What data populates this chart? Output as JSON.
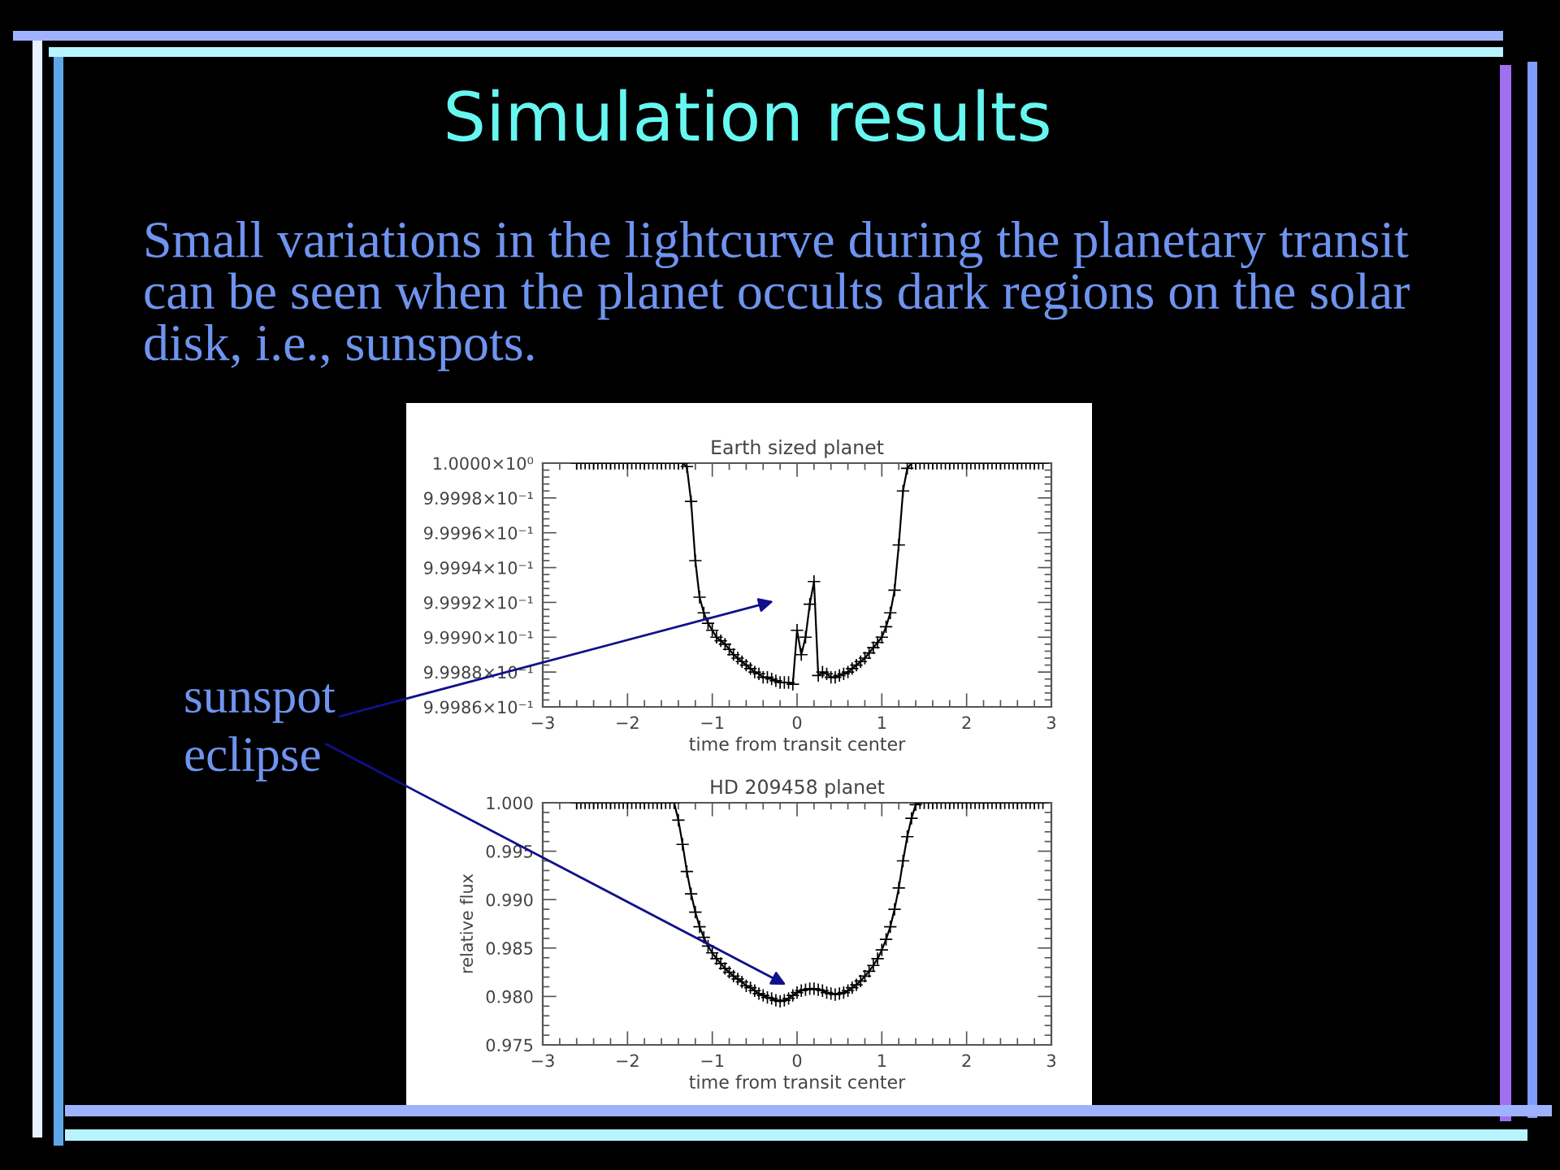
{
  "chart_data": [
    {
      "type": "line",
      "title": "Earth sized planet",
      "xlabel": "time from transit center",
      "color": "#000000",
      "marker": "cross",
      "line_style": "solid",
      "xlim": [
        -3,
        3
      ],
      "ylim": [
        0.99986,
        1.0
      ],
      "xticks": [
        {
          "value": -3,
          "label": "−3"
        },
        {
          "value": -2,
          "label": "−2"
        },
        {
          "value": -1,
          "label": "−1"
        },
        0,
        1,
        2,
        3
      ],
      "yticks": [
        {
          "value": 0.99986,
          "label": "9.9986×10⁻¹"
        },
        {
          "value": 0.99988,
          "label": "9.9988×10⁻¹"
        },
        {
          "value": 0.9999,
          "label": "9.9990×10⁻¹"
        },
        {
          "value": 0.99992,
          "label": "9.9992×10⁻¹"
        },
        {
          "value": 0.99994,
          "label": "9.9994×10⁻¹"
        },
        {
          "value": 0.99996,
          "label": "9.9996×10⁻¹"
        },
        {
          "value": 0.99998,
          "label": "9.9998×10⁻¹"
        },
        {
          "value": 1.0,
          "label": "1.0000×10⁰"
        }
      ],
      "x": [
        -2.6,
        -2.55,
        -2.5,
        -2.45,
        -2.4,
        -2.35,
        -2.3,
        -2.25,
        -2.2,
        -2.15,
        -2.1,
        -2.05,
        -2.0,
        -1.95,
        -1.9,
        -1.85,
        -1.8,
        -1.75,
        -1.7,
        -1.65,
        -1.6,
        -1.55,
        -1.5,
        -1.45,
        -1.4,
        -1.35,
        -1.3,
        -1.25,
        -1.2,
        -1.15,
        -1.1,
        -1.05,
        -1.0,
        -0.95,
        -0.9,
        -0.85,
        -0.8,
        -0.75,
        -0.7,
        -0.65,
        -0.6,
        -0.55,
        -0.5,
        -0.45,
        -0.4,
        -0.35,
        -0.3,
        -0.25,
        -0.2,
        -0.15,
        -0.1,
        -0.05,
        0,
        0.05,
        0.1,
        0.15,
        0.2,
        0.25,
        0.3,
        0.35,
        0.4,
        0.45,
        0.5,
        0.55,
        0.6,
        0.65,
        0.7,
        0.75,
        0.8,
        0.85,
        0.9,
        0.95,
        1.0,
        1.05,
        1.1,
        1.15,
        1.2,
        1.25,
        1.3,
        1.35,
        1.4,
        1.45,
        1.5,
        1.55,
        1.6,
        1.65,
        1.7,
        1.75,
        1.8,
        1.85,
        1.9,
        1.95,
        2.0,
        2.05,
        2.1,
        2.15,
        2.2,
        2.25,
        2.3,
        2.35,
        2.4,
        2.45,
        2.5,
        2.55,
        2.6,
        2.65,
        2.7,
        2.75,
        2.8,
        2.85,
        2.9
      ],
      "values": [
        1.0,
        1.0,
        1.0,
        1.0,
        1.0,
        1.0,
        1.0,
        1.0,
        1.0,
        1.0,
        1.0,
        1.0,
        1.0,
        1.0,
        1.0,
        1.0,
        1.0,
        1.0,
        1.0,
        1.0,
        1.0,
        1.0,
        1.0,
        1.0,
        1.0,
        1.0,
        0.999998,
        0.999978,
        0.999944,
        0.999923,
        0.999914,
        0.999908,
        0.999904,
        0.9999,
        0.999898,
        0.999896,
        0.999893,
        0.99989,
        0.999888,
        0.999886,
        0.999884,
        0.999882,
        0.99988,
        0.999879,
        0.999877,
        0.999877,
        0.999876,
        0.999875,
        0.999874,
        0.999874,
        0.999874,
        0.999873,
        0.999904,
        0.99989,
        0.9999,
        0.999919,
        0.999932,
        0.999878,
        0.99988,
        0.999879,
        0.999877,
        0.999877,
        0.999878,
        0.999879,
        0.99988,
        0.999882,
        0.999884,
        0.999886,
        0.999888,
        0.999891,
        0.999894,
        0.999897,
        0.9999,
        0.999906,
        0.999914,
        0.999927,
        0.999953,
        0.999984,
        0.999997,
        1.0,
        1.0,
        1.0,
        1.0,
        1.0,
        1.0,
        1.0,
        1.0,
        1.0,
        1.0,
        1.0,
        1.0,
        1.0,
        1.0,
        1.0,
        1.0,
        1.0,
        1.0,
        1.0,
        1.0,
        1.0,
        1.0,
        1.0,
        1.0,
        1.0,
        1.0,
        1.0,
        1.0,
        1.0,
        1.0,
        1.0,
        1.0
      ],
      "annotations": [
        "Simulation results",
        "Small variations in the lightcurve during the planetary transit can be seen when the planet occults dark regions on the solar disk, i.e., sunspots.",
        "sunspot"
      ]
    },
    {
      "type": "line",
      "title": "HD 209458 planet",
      "xlabel": "time from transit center",
      "ylabel": "relative flux",
      "color": "#000000",
      "marker": "cross",
      "line_style": "solid",
      "xlim": [
        -3,
        3
      ],
      "ylim": [
        0.975,
        1.0
      ],
      "xticks": [
        {
          "value": -3,
          "label": "−3"
        },
        {
          "value": -2,
          "label": "−2"
        },
        {
          "value": -1,
          "label": "−1"
        },
        0,
        1,
        2,
        3
      ],
      "yticks": [
        0.975,
        {
          "value": 0.98,
          "label": "0.980"
        },
        0.985,
        {
          "value": 0.99,
          "label": "0.990"
        },
        0.995,
        {
          "value": 1.0,
          "label": "1.000"
        }
      ],
      "x": [
        -2.6,
        -2.55,
        -2.5,
        -2.45,
        -2.4,
        -2.35,
        -2.3,
        -2.25,
        -2.2,
        -2.15,
        -2.1,
        -2.05,
        -2.0,
        -1.95,
        -1.9,
        -1.85,
        -1.8,
        -1.75,
        -1.7,
        -1.65,
        -1.6,
        -1.55,
        -1.5,
        -1.45,
        -1.4,
        -1.35,
        -1.3,
        -1.25,
        -1.2,
        -1.15,
        -1.1,
        -1.05,
        -1.0,
        -0.95,
        -0.9,
        -0.85,
        -0.8,
        -0.75,
        -0.7,
        -0.65,
        -0.6,
        -0.55,
        -0.5,
        -0.45,
        -0.4,
        -0.35,
        -0.3,
        -0.25,
        -0.2,
        -0.15,
        -0.1,
        -0.05,
        0,
        0.05,
        0.1,
        0.15,
        0.2,
        0.25,
        0.3,
        0.35,
        0.4,
        0.45,
        0.5,
        0.55,
        0.6,
        0.65,
        0.7,
        0.75,
        0.8,
        0.85,
        0.9,
        0.95,
        1.0,
        1.05,
        1.1,
        1.15,
        1.2,
        1.25,
        1.3,
        1.35,
        1.4,
        1.45,
        1.5,
        1.55,
        1.6,
        1.65,
        1.7,
        1.75,
        1.8,
        1.85,
        1.9,
        1.95,
        2.0,
        2.05,
        2.1,
        2.15,
        2.2,
        2.25,
        2.3,
        2.35,
        2.4,
        2.45,
        2.5,
        2.55,
        2.6,
        2.65,
        2.7,
        2.75,
        2.8,
        2.85,
        2.9
      ],
      "values": [
        1.0,
        1.0,
        1.0,
        1.0,
        1.0,
        1.0,
        1.0,
        1.0,
        1.0,
        1.0,
        1.0,
        1.0,
        1.0,
        1.0,
        1.0,
        1.0,
        1.0,
        1.0,
        1.0,
        1.0,
        1.0,
        1.0,
        1.0,
        1.0,
        0.9982,
        0.9957,
        0.9929,
        0.9906,
        0.9887,
        0.9872,
        0.9861,
        0.9852,
        0.9845,
        0.9839,
        0.9834,
        0.9829,
        0.9825,
        0.9821,
        0.9818,
        0.9815,
        0.9811,
        0.9809,
        0.9806,
        0.9803,
        0.9801,
        0.9799,
        0.9798,
        0.9796,
        0.9795,
        0.9796,
        0.9798,
        0.9801,
        0.9804,
        0.9806,
        0.9807,
        0.9808,
        0.9808,
        0.9807,
        0.9806,
        0.9804,
        0.9803,
        0.9802,
        0.9803,
        0.9804,
        0.9806,
        0.9809,
        0.9812,
        0.9816,
        0.9821,
        0.9826,
        0.9832,
        0.9839,
        0.9848,
        0.9859,
        0.9872,
        0.989,
        0.9912,
        0.994,
        0.9965,
        0.9984,
        0.9998,
        1.0,
        1.0,
        1.0,
        1.0,
        1.0,
        1.0,
        1.0,
        1.0,
        1.0,
        1.0,
        1.0,
        1.0,
        1.0,
        1.0,
        1.0,
        1.0,
        1.0,
        1.0,
        1.0,
        1.0,
        1.0,
        1.0,
        1.0,
        1.0,
        1.0,
        1.0,
        1.0,
        1.0,
        1.0,
        1.0
      ],
      "annotations": [
        {
          "text": "eclipse",
          "x": -0.13,
          "y": 0.9812
        }
      ]
    }
  ]
}
